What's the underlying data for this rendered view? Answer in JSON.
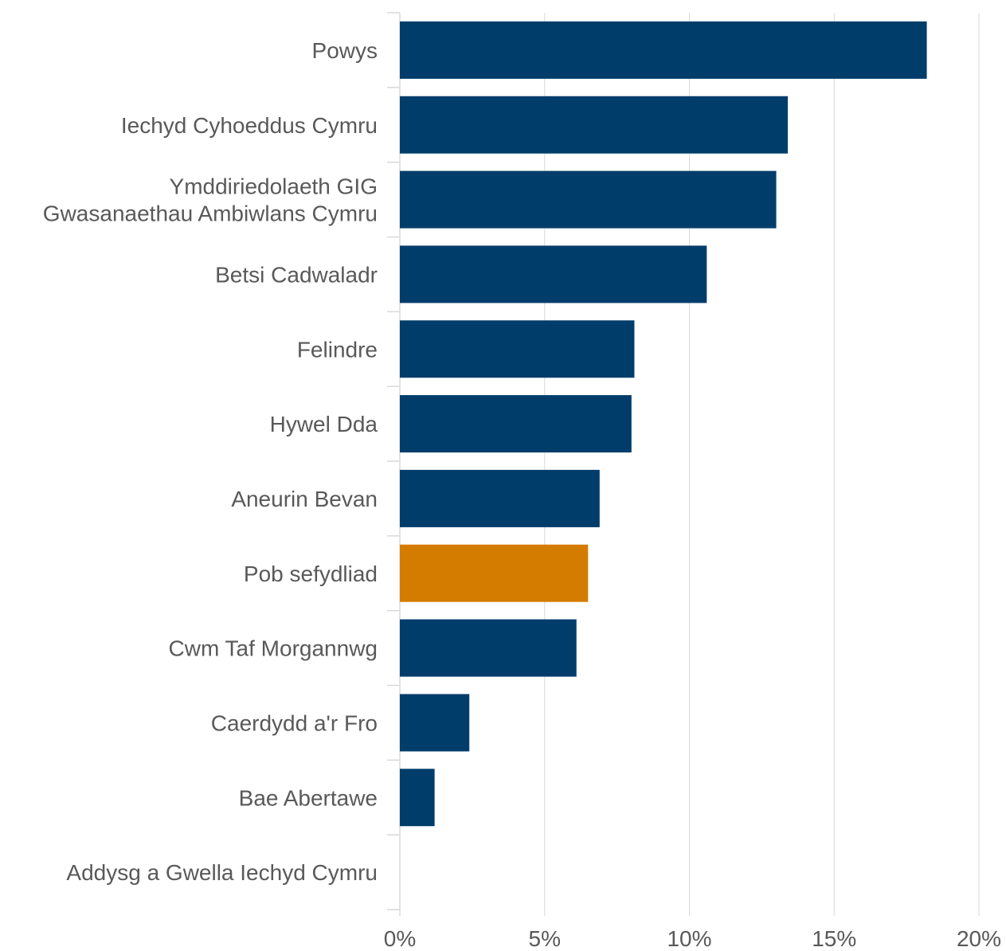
{
  "chart_data": {
    "type": "bar",
    "orientation": "horizontal",
    "title": "",
    "xlabel": "",
    "ylabel": "",
    "xlim": [
      0,
      20
    ],
    "x_ticks": [
      "0%",
      "5%",
      "10%",
      "15%",
      "20%"
    ],
    "grid": "vertical gridlines",
    "legend": "none",
    "colors": {
      "default": "#003D6B",
      "highlight": "#D47C00",
      "grid": "#D9D9D9",
      "text": "#595959"
    },
    "categories": [
      {
        "label": [
          "Powys"
        ],
        "value": 18.2,
        "highlight": false
      },
      {
        "label": [
          "Iechyd Cyhoeddus Cymru"
        ],
        "value": 13.4,
        "highlight": false
      },
      {
        "label": [
          "Ymddiriedolaeth GIG",
          "Gwasanaethau Ambiwlans Cymru"
        ],
        "value": 13.0,
        "highlight": false
      },
      {
        "label": [
          "Betsi Cadwaladr"
        ],
        "value": 10.6,
        "highlight": false
      },
      {
        "label": [
          "Felindre"
        ],
        "value": 8.1,
        "highlight": false
      },
      {
        "label": [
          "Hywel Dda"
        ],
        "value": 8.0,
        "highlight": false
      },
      {
        "label": [
          "Aneurin Bevan"
        ],
        "value": 6.9,
        "highlight": false
      },
      {
        "label": [
          "Pob sefydliad"
        ],
        "value": 6.5,
        "highlight": true
      },
      {
        "label": [
          "Cwm Taf Morgannwg"
        ],
        "value": 6.1,
        "highlight": false
      },
      {
        "label": [
          "Caerdydd a'r Fro"
        ],
        "value": 2.4,
        "highlight": false
      },
      {
        "label": [
          "Bae Abertawe"
        ],
        "value": 1.2,
        "highlight": false
      },
      {
        "label": [
          "Addysg a Gwella Iechyd Cymru"
        ],
        "value": 0,
        "highlight": false
      }
    ]
  }
}
